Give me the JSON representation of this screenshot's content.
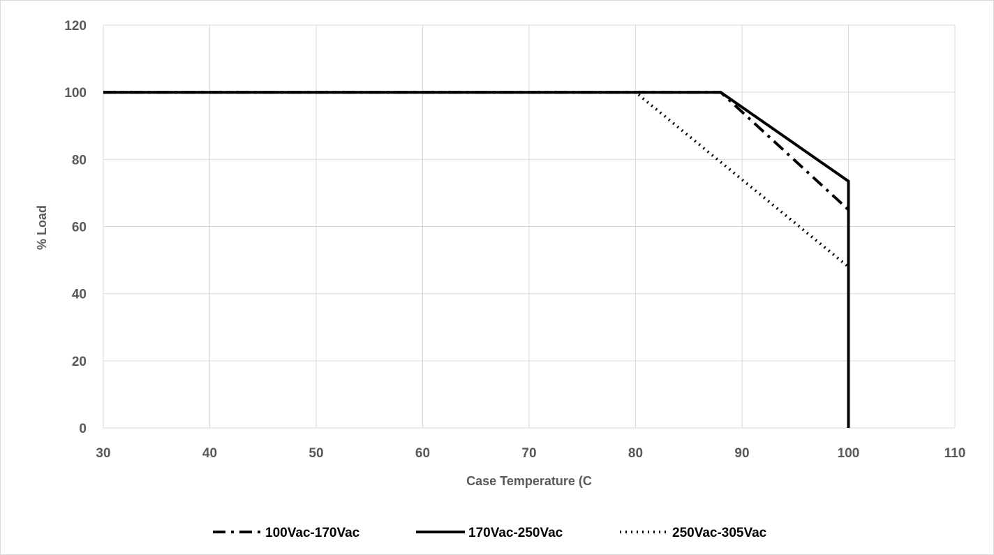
{
  "chart_data": {
    "type": "line",
    "title": "",
    "xlabel": "Case Temperature (C",
    "ylabel": "% Load",
    "xlim": [
      30,
      110
    ],
    "ylim": [
      0,
      120
    ],
    "xticks": [
      "30",
      "40",
      "50",
      "60",
      "70",
      "80",
      "90",
      "100",
      "110"
    ],
    "yticks": [
      "0",
      "20",
      "40",
      "60",
      "80",
      "100",
      "120"
    ],
    "grid": true,
    "legend_position": "bottom",
    "series": [
      {
        "name": "100Vac-170Vac",
        "style": "dash-dot",
        "color": "#000000",
        "points": [
          [
            30,
            100
          ],
          [
            88,
            100
          ],
          [
            100,
            65
          ],
          [
            100,
            0
          ]
        ]
      },
      {
        "name": "170Vac-250Vac",
        "style": "solid",
        "color": "#000000",
        "points": [
          [
            30,
            100
          ],
          [
            88,
            100
          ],
          [
            100,
            73.5
          ],
          [
            100,
            0
          ]
        ]
      },
      {
        "name": "250Vac-305Vac",
        "style": "dotted",
        "color": "#000000",
        "points": [
          [
            30,
            100
          ],
          [
            80,
            100
          ],
          [
            100,
            48
          ],
          [
            100,
            0
          ]
        ]
      }
    ]
  }
}
